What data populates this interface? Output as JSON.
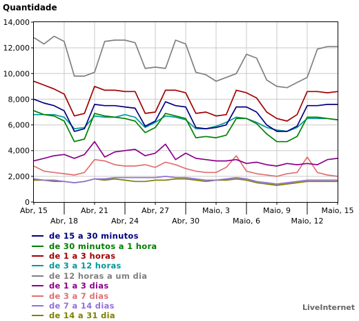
{
  "brand": "LiveInternet",
  "chart_data": {
    "type": "line",
    "title": "Quantidade",
    "xlabel": "",
    "ylabel": "Quantidade",
    "ylim": [
      0,
      14000
    ],
    "y_ticks": [
      0,
      2000,
      4000,
      6000,
      8000,
      10000,
      12000,
      14000
    ],
    "y_tick_labels": [
      "0",
      "2,000",
      "4,000",
      "6,000",
      "8,000",
      "10,000",
      "12,000",
      "14,000"
    ],
    "grid": true,
    "legend_position": "bottom",
    "x": [
      "Abr, 15",
      "Abr, 16",
      "Abr, 17",
      "Abr, 18",
      "Abr, 19",
      "Abr, 20",
      "Abr, 21",
      "Abr, 22",
      "Abr, 23",
      "Abr, 24",
      "Abr, 25",
      "Abr, 26",
      "Abr, 27",
      "Abr, 28",
      "Abr, 29",
      "Abr, 30",
      "Maio, 1",
      "Maio, 2",
      "Maio, 3",
      "Maio, 4",
      "Maio, 5",
      "Maio, 6",
      "Maio, 7",
      "Maio, 8",
      "Maio, 9",
      "Maio, 10",
      "Maio, 11",
      "Maio, 12",
      "Maio, 13",
      "Maio, 14",
      "Maio, 15"
    ],
    "x_tick_labels": [
      {
        "index": 0,
        "label": "Abr, 15",
        "row": 1
      },
      {
        "index": 3,
        "label": "Abr, 18",
        "row": 2
      },
      {
        "index": 6,
        "label": "Abr, 21",
        "row": 1
      },
      {
        "index": 9,
        "label": "Abr, 24",
        "row": 2
      },
      {
        "index": 12,
        "label": "Abr, 27",
        "row": 1
      },
      {
        "index": 15,
        "label": "Abr, 30",
        "row": 2
      },
      {
        "index": 18,
        "label": "Maio, 3",
        "row": 1
      },
      {
        "index": 21,
        "label": "Maio, 6",
        "row": 2
      },
      {
        "index": 24,
        "label": "Maio, 9",
        "row": 1
      },
      {
        "index": 27,
        "label": "Maio, 12",
        "row": 2
      },
      {
        "index": 30,
        "label": "Maio, 15",
        "row": 1
      }
    ],
    "series": [
      {
        "name": "de 15 a 30 minutos",
        "color": "#000080",
        "values": [
          8000,
          7700,
          7500,
          7100,
          5500,
          5700,
          7600,
          7500,
          7500,
          7400,
          7300,
          5900,
          6300,
          7800,
          7500,
          7400,
          5800,
          5700,
          5800,
          6000,
          7400,
          7400,
          7000,
          6000,
          5500,
          5500,
          5900,
          7500,
          7500,
          7600,
          7600
        ]
      },
      {
        "name": "de 30 minutos a 1 hora",
        "color": "#008000",
        "values": [
          7100,
          6800,
          6700,
          6300,
          4700,
          4900,
          6900,
          6700,
          6600,
          6500,
          6300,
          5400,
          5800,
          6900,
          6700,
          6500,
          5000,
          5100,
          5000,
          5200,
          6500,
          6500,
          6100,
          5300,
          4700,
          4700,
          5100,
          6600,
          6600,
          6500,
          6400
        ]
      },
      {
        "name": "de 1 a 3 horas",
        "color": "#a00000",
        "values": [
          9400,
          9100,
          8800,
          8400,
          6700,
          6900,
          9000,
          8700,
          8700,
          8600,
          8600,
          6900,
          7000,
          8700,
          8700,
          8500,
          6900,
          7000,
          6700,
          6800,
          8700,
          8500,
          8100,
          7000,
          6500,
          6300,
          6800,
          8600,
          8600,
          8500,
          8600
        ]
      },
      {
        "name": "de 3 a 12 horas",
        "color": "#009999",
        "values": [
          6800,
          6800,
          6800,
          6600,
          5700,
          5800,
          6700,
          6600,
          6600,
          6800,
          6600,
          5800,
          6200,
          6700,
          6600,
          6400,
          5700,
          5700,
          5900,
          6200,
          6600,
          6500,
          6200,
          5800,
          5600,
          5500,
          5800,
          6500,
          6500,
          6500,
          6400
        ]
      },
      {
        "name": "de 12 horas a um dia",
        "color": "#808080",
        "values": [
          12800,
          12300,
          12900,
          12500,
          9800,
          9800,
          10100,
          12500,
          12600,
          12600,
          12400,
          10400,
          10500,
          10400,
          12600,
          12300,
          10100,
          9900,
          9400,
          9700,
          10000,
          11500,
          11200,
          9500,
          9000,
          8900,
          9300,
          9700,
          11900,
          12100,
          12100
        ]
      },
      {
        "name": "de 1 a 3 dias",
        "color": "#8b008b",
        "values": [
          3200,
          3400,
          3600,
          3700,
          3400,
          3700,
          4700,
          3500,
          3900,
          4000,
          4100,
          3600,
          3800,
          4500,
          3300,
          3800,
          3400,
          3300,
          3200,
          3200,
          3300,
          3000,
          3100,
          2900,
          2800,
          3000,
          2900,
          3000,
          2900,
          3300,
          3400
        ]
      },
      {
        "name": "de 3 a 7 dias",
        "color": "#e07070",
        "values": [
          2800,
          2400,
          2300,
          2200,
          2100,
          2300,
          3300,
          3200,
          2900,
          2800,
          2800,
          2900,
          2700,
          3100,
          2900,
          2600,
          2400,
          2300,
          2300,
          2700,
          3600,
          2400,
          2200,
          2100,
          2000,
          2200,
          2300,
          3500,
          2300,
          2100,
          2000
        ]
      },
      {
        "name": "de 7 a 14 dias",
        "color": "#9370db",
        "values": [
          1800,
          1700,
          1700,
          1600,
          1500,
          1600,
          1800,
          1800,
          1900,
          1900,
          1900,
          1900,
          1900,
          2000,
          1900,
          1900,
          1800,
          1700,
          1700,
          1800,
          1900,
          1800,
          1600,
          1500,
          1400,
          1500,
          1600,
          1700,
          1700,
          1700,
          1700
        ]
      },
      {
        "name": "de 14 a 31 dia",
        "color": "#808000",
        "values": [
          1700,
          1700,
          1600,
          1600,
          1500,
          1600,
          1800,
          1700,
          1800,
          1700,
          1600,
          1600,
          1700,
          1700,
          1800,
          1800,
          1700,
          1600,
          1700,
          1700,
          1800,
          1700,
          1500,
          1400,
          1300,
          1400,
          1500,
          1600,
          1600,
          1600,
          1600
        ]
      }
    ]
  }
}
